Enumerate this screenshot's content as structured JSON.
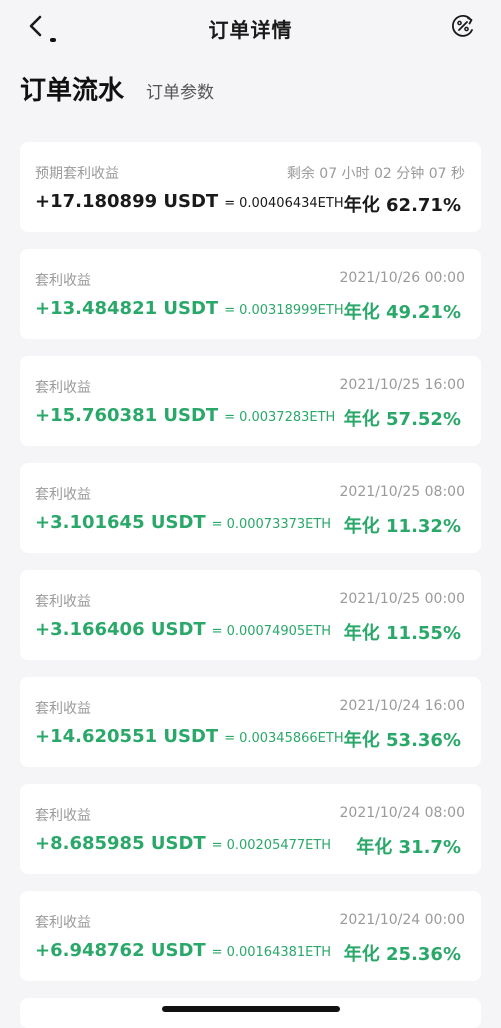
{
  "header": {
    "title": "订单详情",
    "back_icon": "chevron-left-icon",
    "action_icon": "percent-circle-icon"
  },
  "tabs": [
    {
      "label": "订单流水",
      "active": true
    },
    {
      "label": "订单参数",
      "active": false
    }
  ],
  "colors": {
    "accent_green": "#2aa86a",
    "text_dark": "#1a1a1a",
    "muted": "#9a9a9a",
    "background": "#f5f5f7"
  },
  "projected": {
    "label": "预期套利收益",
    "remaining": "剩余 07 小时 02 分钟 07 秒",
    "amount": "+17.180899 USDT",
    "eq": "=",
    "eth": "0.00406434ETH",
    "rate": "年化 62.71%"
  },
  "records": [
    {
      "label": "套利收益",
      "time": "2021/10/26 00:00",
      "amount": "+13.484821 USDT",
      "eq": "=",
      "eth": "0.00318999ETH",
      "rate": "年化 49.21%"
    },
    {
      "label": "套利收益",
      "time": "2021/10/25 16:00",
      "amount": "+15.760381 USDT",
      "eq": "=",
      "eth": "0.0037283ETH",
      "rate": "年化 57.52%"
    },
    {
      "label": "套利收益",
      "time": "2021/10/25 08:00",
      "amount": "+3.101645 USDT",
      "eq": "=",
      "eth": "0.00073373ETH",
      "rate": "年化 11.32%"
    },
    {
      "label": "套利收益",
      "time": "2021/10/25 00:00",
      "amount": "+3.166406 USDT",
      "eq": "=",
      "eth": "0.00074905ETH",
      "rate": "年化 11.55%"
    },
    {
      "label": "套利收益",
      "time": "2021/10/24 16:00",
      "amount": "+14.620551 USDT",
      "eq": "=",
      "eth": "0.00345866ETH",
      "rate": "年化 53.36%"
    },
    {
      "label": "套利收益",
      "time": "2021/10/24 08:00",
      "amount": "+8.685985 USDT",
      "eq": "=",
      "eth": "0.00205477ETH",
      "rate": "年化 31.7%"
    },
    {
      "label": "套利收益",
      "time": "2021/10/24 00:00",
      "amount": "+6.948762 USDT",
      "eq": "=",
      "eth": "0.00164381ETH",
      "rate": "年化 25.36%"
    }
  ]
}
